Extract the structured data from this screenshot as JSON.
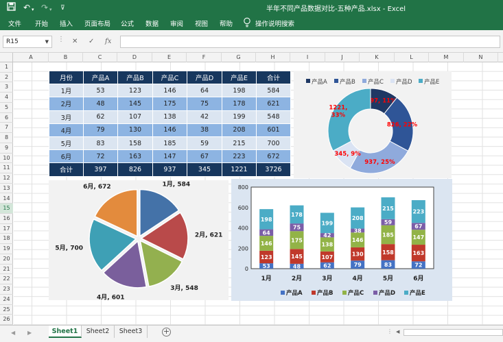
{
  "window": {
    "title": "半年不同产品数据对比-五种产品.xlsx  -  Excel",
    "quick_access": [
      "save-icon",
      "undo-icon",
      "redo-icon",
      "customize-icon"
    ]
  },
  "ribbon": {
    "tabs": [
      "文件",
      "开始",
      "插入",
      "页面布局",
      "公式",
      "数据",
      "审阅",
      "视图",
      "帮助"
    ],
    "tell_me": "操作说明搜索"
  },
  "formula_bar": {
    "name_box": "R15",
    "cancel_symbol": "✕",
    "enter_symbol": "✓",
    "fx_symbol": "fx",
    "value": ""
  },
  "grid": {
    "columns": [
      "A",
      "B",
      "C",
      "D",
      "E",
      "F",
      "G",
      "H",
      "I",
      "J",
      "K",
      "L",
      "M",
      "N"
    ],
    "rows": [
      "1",
      "2",
      "3",
      "4",
      "5",
      "6",
      "7",
      "8",
      "9",
      "10",
      "11",
      "12",
      "13",
      "14",
      "15",
      "16",
      "17",
      "18",
      "19",
      "20",
      "21",
      "22",
      "23",
      "24",
      "25",
      "26"
    ],
    "selected_row": "15"
  },
  "table": {
    "headers": [
      "月份",
      "产品A",
      "产品B",
      "产品C",
      "产品D",
      "产品E",
      "合计"
    ],
    "rows": [
      [
        "1月",
        "53",
        "123",
        "146",
        "64",
        "198",
        "584"
      ],
      [
        "2月",
        "48",
        "145",
        "175",
        "75",
        "178",
        "621"
      ],
      [
        "3月",
        "62",
        "107",
        "138",
        "42",
        "199",
        "548"
      ],
      [
        "4月",
        "79",
        "130",
        "146",
        "38",
        "208",
        "601"
      ],
      [
        "5月",
        "83",
        "158",
        "185",
        "59",
        "215",
        "700"
      ],
      [
        "6月",
        "72",
        "163",
        "147",
        "67",
        "223",
        "672"
      ]
    ],
    "total": [
      "合计",
      "397",
      "826",
      "937",
      "345",
      "1221",
      "3726"
    ]
  },
  "chart_data": [
    {
      "type": "pie",
      "variant": "donut",
      "legend_position": "top",
      "categories": [
        "产品A",
        "产品B",
        "产品C",
        "产品D",
        "产品E"
      ],
      "values": [
        397,
        826,
        937,
        345,
        1221
      ],
      "labels": [
        "397, 11%",
        "826, 22%",
        "937, 25%",
        "345, 9%",
        "1221,\n33%"
      ],
      "colors": [
        "#1f3864",
        "#2f5597",
        "#8faadc",
        "#dae3f3",
        "#4bacc6"
      ],
      "label_color": "#ff0000"
    },
    {
      "type": "pie",
      "categories": [
        "1月",
        "2月",
        "3月",
        "4月",
        "5月",
        "6月"
      ],
      "values": [
        584,
        621,
        548,
        601,
        700,
        672
      ],
      "labels": [
        "1月, 584",
        "2月, 621",
        "3月, 548",
        "4月, 601",
        "5月, 700",
        "6月, 672"
      ],
      "colors": [
        "#4472a8",
        "#b94a4a",
        "#93b04f",
        "#7a5f9c",
        "#3ea0b5",
        "#e38b3d"
      ]
    },
    {
      "type": "bar",
      "stacked": true,
      "categories": [
        "1月",
        "2月",
        "3月",
        "4月",
        "5月",
        "6月"
      ],
      "ylim": [
        0,
        800
      ],
      "yticks": [
        "0",
        "200",
        "400",
        "600",
        "800"
      ],
      "legend_position": "bottom",
      "grid": false,
      "series": [
        {
          "name": "产品A",
          "values": [
            53,
            48,
            62,
            79,
            83,
            72
          ],
          "color": "#4472c4"
        },
        {
          "name": "产品B",
          "values": [
            123,
            145,
            107,
            130,
            158,
            163
          ],
          "color": "#c0392b"
        },
        {
          "name": "产品C",
          "values": [
            146,
            175,
            138,
            146,
            185,
            147
          ],
          "color": "#92b347"
        },
        {
          "name": "产品D",
          "values": [
            64,
            75,
            42,
            38,
            59,
            67
          ],
          "color": "#7b5ea7"
        },
        {
          "name": "产品E",
          "values": [
            198,
            178,
            199,
            208,
            215,
            223
          ],
          "color": "#4bacc6"
        }
      ]
    }
  ],
  "sheets": {
    "tabs": [
      "Sheet1",
      "Sheet2",
      "Sheet3"
    ],
    "active": "Sheet1",
    "add_symbol": "+"
  }
}
